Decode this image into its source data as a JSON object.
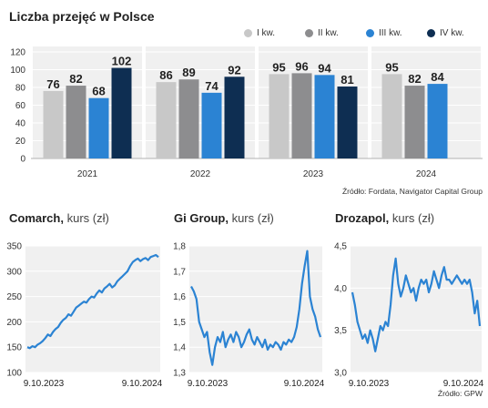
{
  "title": "Liczba przejęć w Polsce",
  "legend": [
    {
      "label": "I kw.",
      "color": "#c8c8c8"
    },
    {
      "label": "II kw.",
      "color": "#8d8d8f"
    },
    {
      "label": "III kw.",
      "color": "#2b83d3"
    },
    {
      "label": "IV kw.",
      "color": "#0e2e52"
    }
  ],
  "source_top": "Źródło: Fordata, Navigator Capital Group",
  "source_bottom": "Źródło: GPW",
  "chart_data": [
    {
      "type": "bar",
      "title": "Liczba przejęć w Polsce",
      "categories": [
        "2021",
        "2022",
        "2023",
        "2024"
      ],
      "series": [
        {
          "name": "I kw.",
          "values": [
            76,
            86,
            95,
            95
          ]
        },
        {
          "name": "II kw.",
          "values": [
            82,
            89,
            96,
            82
          ]
        },
        {
          "name": "III kw.",
          "values": [
            68,
            74,
            94,
            84
          ]
        },
        {
          "name": "IV kw.",
          "values": [
            102,
            92,
            81,
            null
          ]
        }
      ],
      "ylim": [
        0,
        120
      ],
      "yticks": [
        "0",
        "20",
        "40",
        "60",
        "80",
        "100",
        "120"
      ],
      "legend_position": "top-right"
    },
    {
      "type": "line",
      "name_bold": "Comarch,",
      "name_unit": "kurs (zł)",
      "ylim": [
        100,
        350
      ],
      "yticks": [
        "100",
        "150",
        "200",
        "250",
        "300",
        "350"
      ],
      "xticks": [
        "9.10.2023",
        "9.10.2024"
      ],
      "values": [
        150,
        148,
        152,
        150,
        155,
        158,
        162,
        168,
        175,
        172,
        180,
        186,
        190,
        198,
        204,
        208,
        215,
        212,
        220,
        228,
        232,
        236,
        240,
        238,
        245,
        250,
        248,
        256,
        262,
        258,
        266,
        270,
        275,
        268,
        272,
        280,
        285,
        290,
        295,
        300,
        310,
        318,
        322,
        325,
        320,
        324,
        326,
        322,
        328,
        330,
        332,
        328
      ]
    },
    {
      "type": "line",
      "name_bold": "Gi Group,",
      "name_unit": "kurs (zł)",
      "ylim": [
        1.3,
        1.8
      ],
      "yticks": [
        "1,3",
        "1,4",
        "1,5",
        "1,6",
        "1,7",
        "1,8"
      ],
      "xticks": [
        "9.10.2023",
        "9.10.2024"
      ],
      "values": [
        1.64,
        1.62,
        1.59,
        1.5,
        1.47,
        1.44,
        1.46,
        1.38,
        1.33,
        1.4,
        1.44,
        1.42,
        1.46,
        1.4,
        1.43,
        1.45,
        1.42,
        1.46,
        1.44,
        1.4,
        1.42,
        1.45,
        1.47,
        1.43,
        1.41,
        1.44,
        1.42,
        1.4,
        1.43,
        1.39,
        1.41,
        1.4,
        1.42,
        1.41,
        1.39,
        1.42,
        1.41,
        1.43,
        1.42,
        1.44,
        1.48,
        1.55,
        1.65,
        1.72,
        1.78,
        1.6,
        1.55,
        1.52,
        1.47,
        1.44
      ]
    },
    {
      "type": "line",
      "name_bold": "Drozapol,",
      "name_unit": "kurs (zł)",
      "ylim": [
        3.0,
        4.5
      ],
      "yticks": [
        "3,0",
        "3,5",
        "4,0",
        "4,5"
      ],
      "xticks": [
        "9.10.2023",
        "9.10.2024"
      ],
      "values": [
        3.95,
        3.8,
        3.6,
        3.5,
        3.4,
        3.45,
        3.35,
        3.5,
        3.4,
        3.25,
        3.4,
        3.55,
        3.5,
        3.6,
        3.55,
        3.8,
        4.15,
        4.35,
        4.05,
        3.9,
        4.0,
        4.15,
        4.05,
        3.95,
        4.0,
        3.85,
        4.0,
        4.1,
        4.05,
        4.1,
        3.95,
        4.05,
        4.2,
        4.1,
        4.0,
        4.15,
        4.25,
        4.1,
        4.1,
        4.05,
        4.1,
        4.15,
        4.1,
        4.05,
        4.1,
        4.05,
        4.1,
        3.95,
        3.7,
        3.85,
        3.55
      ]
    }
  ]
}
